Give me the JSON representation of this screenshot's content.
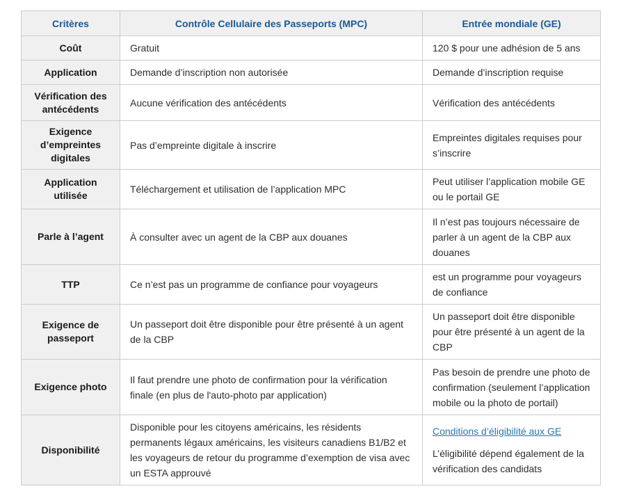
{
  "colors": {
    "header_text": "#155a96",
    "criterion_text": "#1a1a1a",
    "body_text": "#2d2d2d",
    "link": "#2478ad",
    "shaded_cell_bg": "#f0f0f0",
    "border": "#cccccc",
    "page_bg": "#ffffff"
  },
  "table": {
    "columns": [
      "Critères",
      "Contrôle Cellulaire des Passeports (MPC)",
      "Entrée mondiale (GE)"
    ],
    "rows": [
      {
        "criterion": "Coût",
        "mpc": "Gratuit",
        "ge": "120 $ pour une adhésion de 5 ans"
      },
      {
        "criterion": "Application",
        "mpc": "Demande d’inscription non autorisée",
        "ge": "Demande d’inscription requise"
      },
      {
        "criterion": "Vérification des antécédents",
        "mpc": "Aucune vérification des antécédents",
        "ge": "Vérification des antécédents"
      },
      {
        "criterion": "Exigence d’empreintes digitales",
        "mpc": "Pas d’empreinte digitale à inscrire",
        "ge": "Empreintes digitales requises pour s’inscrire"
      },
      {
        "criterion": "Application utilisée",
        "mpc": "Téléchargement et utilisation de l’application MPC",
        "ge": "Peut utiliser l’application mobile GE ou le portail GE"
      },
      {
        "criterion": "Parle à l’agent",
        "mpc": "À consulter avec un agent de la CBP aux douanes",
        "ge": "Il n’est pas toujours nécessaire de parler à un agent de la CBP aux douanes"
      },
      {
        "criterion": "TTP",
        "mpc": "Ce n’est pas un programme de confiance pour voyageurs",
        "ge": "est un programme pour voyageurs de confiance"
      },
      {
        "criterion": "Exigence de passeport",
        "mpc": "Un passeport doit être disponible pour être présenté à un agent de la CBP",
        "ge": "Un passeport doit être disponible pour être présenté à un agent de la CBP"
      },
      {
        "criterion": "Exigence photo",
        "mpc": "Il faut prendre une photo de confirmation pour la vérification finale (en plus de l'auto-photo par application)",
        "ge": "Pas besoin de prendre une photo de confirmation (seulement l’application mobile ou la photo de portail)"
      },
      {
        "criterion": "Disponibilité",
        "mpc": "Disponible pour les citoyens américains, les résidents permanents légaux américains, les visiteurs canadiens B1/B2 et les voyageurs de retour du programme d’exemption de visa avec un ESTA approuvé",
        "ge_link": "Conditions d’éligibilité aux GE",
        "ge_text": "L’éligibilité dépend également de la vérification des candidats"
      }
    ]
  }
}
